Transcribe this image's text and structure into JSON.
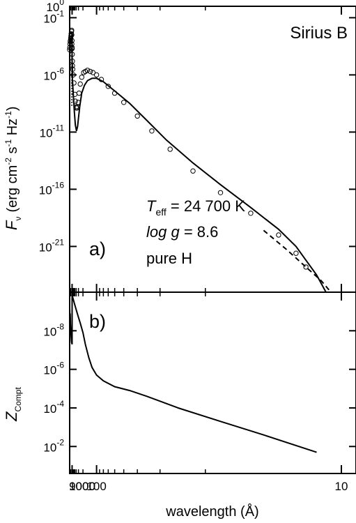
{
  "chart_data": [
    {
      "panel": "a)",
      "type": "line",
      "title": "Sirius B",
      "xlabel": "wavelength  (Å)",
      "ylabel": {
        "symbol": "F",
        "sub": "ν",
        "units_base": "(erg cm",
        "units_exp1": "-2",
        "units_mid": " s",
        "units_exp2": "-1",
        "units_mid2": " Hz",
        "units_exp3": "-1",
        "units_end": ")"
      },
      "x_scale": "reciprocal",
      "x_ticks": [
        {
          "value": 9000,
          "label": "9000"
        },
        {
          "value": 1000,
          "label": "1000"
        },
        {
          "value": 100,
          "label": "100"
        },
        {
          "value": 10,
          "label": "10"
        }
      ],
      "y_scale": "log",
      "ylim_log10": [
        0,
        -25
      ],
      "y_ticks": [
        {
          "log10": -1,
          "base": "10",
          "exp": "-1"
        },
        {
          "log10": -6,
          "base": "10",
          "exp": "-6"
        },
        {
          "log10": -11,
          "base": "10",
          "exp": "-11"
        },
        {
          "log10": -16,
          "base": "10",
          "exp": "-16"
        },
        {
          "log10": -21,
          "base": "10",
          "exp": "-21"
        },
        {
          "log10": 0,
          "base": "10",
          "exp": "0"
        }
      ],
      "annotation": {
        "teff_T": "T",
        "teff_sub": "eff",
        "teff_value": " = 24 700 K",
        "logg_italic": "log g",
        "logg_value": " = 8.6",
        "composition": "pure H"
      },
      "series": [
        {
          "style": "solid",
          "x": [
            9000,
            5000,
            3000,
            2000,
            1500,
            1200,
            1100,
            1000,
            999,
            960,
            920,
            911,
            910,
            900,
            850,
            700,
            550,
            450,
            380,
            330,
            300,
            260,
            220,
            180,
            150,
            120,
            100,
            80,
            60,
            45,
            35,
            28,
            22,
            18,
            15,
            13,
            12,
            11,
            10.6
          ],
          "y_log10": [
            -3.8,
            -3.5,
            -3.2,
            -3.0,
            -2.8,
            -2.6,
            -2.5,
            -2.3,
            -4.6,
            -5.0,
            -5.1,
            -5.2,
            -6.6,
            -6.5,
            -6.6,
            -7.6,
            -9.2,
            -10.4,
            -10.9,
            -10.5,
            -9.8,
            -8.7,
            -7.6,
            -6.9,
            -6.5,
            -6.3,
            -6.3,
            -6.6,
            -7.4,
            -8.5,
            -10.0,
            -11.7,
            -13.7,
            -15.6,
            -17.6,
            -19.5,
            -21.0,
            -23.5,
            -25.0
          ]
        },
        {
          "style": "circles",
          "x": [
            9000,
            6000,
            4000,
            3000,
            2500,
            2000,
            1700,
            1500,
            1300,
            1200,
            1150,
            1100,
            1070,
            1050,
            1020,
            1000,
            950,
            911,
            880,
            800,
            700,
            600,
            500,
            450,
            400,
            370,
            340,
            310,
            280,
            250,
            220,
            190,
            170,
            150,
            130,
            115,
            100,
            85,
            70,
            60,
            50,
            40,
            33,
            27,
            22,
            18,
            15,
            13,
            12,
            11.5
          ],
          "y_log10": [
            -3.8,
            -3.6,
            -3.3,
            -3.1,
            -3.0,
            -2.8,
            -2.6,
            -2.4,
            -2.2,
            -2.1,
            -2.5,
            -3.3,
            -3.7,
            -3.0,
            -3.6,
            -3.7,
            -4.2,
            -4.8,
            -5.2,
            -5.5,
            -6.0,
            -6.7,
            -7.7,
            -8.3,
            -8.8,
            -8.9,
            -8.8,
            -8.4,
            -7.6,
            -6.8,
            -6.2,
            -5.8,
            -5.7,
            -5.6,
            -5.7,
            -5.8,
            -6.0,
            -6.4,
            -7.0,
            -7.6,
            -8.4,
            -9.6,
            -10.9,
            -12.5,
            -14.4,
            -16.3,
            -18.1,
            -20.0,
            -21.6,
            -22.8
          ]
        },
        {
          "style": "dashed",
          "x": [
            14,
            12.5,
            11.5,
            10.8,
            10.4
          ],
          "y_log10": [
            -19.6,
            -21.3,
            -22.8,
            -24.0,
            -25.0
          ]
        },
        {
          "style": "dotted",
          "x": [
            1130,
            1115,
            1115,
            1100
          ],
          "y_log10": [
            -2.5,
            -2.5,
            -8.8,
            -8.8
          ]
        },
        {
          "style": "dotted",
          "x": [
            955,
            955,
            930
          ],
          "y_log10": [
            -2.7,
            -5.5,
            -5.5
          ]
        }
      ]
    },
    {
      "panel": "b)",
      "type": "line",
      "ylabel": {
        "symbol": "Z",
        "sub": "Compt"
      },
      "x_scale": "reciprocal",
      "y_scale": "log",
      "ylim_log10": [
        -10,
        -0.6
      ],
      "y_ticks": [
        {
          "log10": -2,
          "base": "10",
          "exp": "-2"
        },
        {
          "log10": -4,
          "base": "10",
          "exp": "-4"
        },
        {
          "log10": -6,
          "base": "10",
          "exp": "-6"
        },
        {
          "log10": -8,
          "base": "10",
          "exp": "-8"
        }
      ],
      "series": [
        {
          "style": "solid",
          "x": [
            9000,
            9000,
            7000,
            4000,
            3400,
            3000,
            2500,
            2000,
            1500,
            1250,
            1005,
            1003,
            900,
            600,
            400,
            300,
            250,
            200,
            170,
            140,
            120,
            100,
            80,
            60,
            45,
            35,
            25,
            18,
            14,
            11
          ],
          "y_log10": [
            -9.2,
            -9.0,
            -9.1,
            -8.2,
            -8.9,
            -8.7,
            -8.4,
            -8.1,
            -7.7,
            -7.4,
            -7.3,
            -9.9,
            -9.8,
            -9.5,
            -9.1,
            -8.7,
            -8.4,
            -7.9,
            -7.3,
            -6.6,
            -6.1,
            -5.7,
            -5.4,
            -5.1,
            -4.9,
            -4.6,
            -4.0,
            -3.3,
            -2.6,
            -1.7
          ]
        }
      ]
    }
  ]
}
